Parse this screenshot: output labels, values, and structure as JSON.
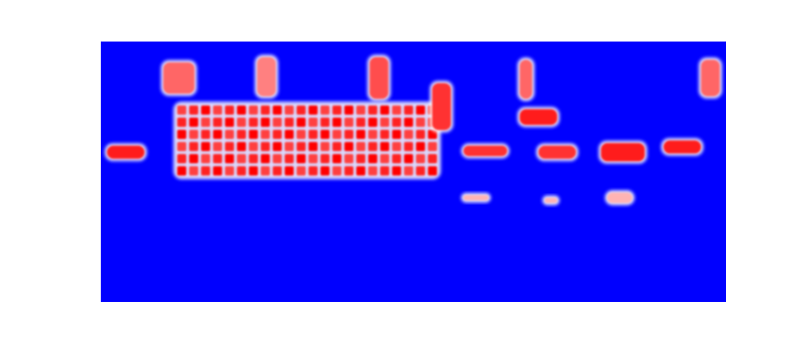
{
  "chart_data": {
    "type": "heatmap",
    "title": "",
    "xlabel": "",
    "ylabel": "",
    "grid": false,
    "legend": "none",
    "colors": {
      "background": "#0000ff",
      "high": "#ff0000",
      "mid": "#ffffff"
    },
    "blobs": [
      {
        "label": "large-block",
        "x": [
          0.12,
          0.54
        ],
        "y": [
          0.24,
          0.52
        ],
        "value": 1.0,
        "rows": 6,
        "cols": 22
      },
      {
        "label": "left-streak",
        "x": [
          0.01,
          0.07
        ],
        "y": [
          0.4,
          0.45
        ],
        "value": 0.9
      },
      {
        "label": "upper-left-cluster",
        "x": [
          0.1,
          0.15
        ],
        "y": [
          0.08,
          0.2
        ],
        "value": 0.6
      },
      {
        "label": "upper-col-1",
        "x": [
          0.25,
          0.28
        ],
        "y": [
          0.06,
          0.21
        ],
        "value": 0.5
      },
      {
        "label": "upper-col-2",
        "x": [
          0.43,
          0.46
        ],
        "y": [
          0.06,
          0.22
        ],
        "value": 0.7
      },
      {
        "label": "vertical-bar",
        "x": [
          0.53,
          0.56
        ],
        "y": [
          0.16,
          0.34
        ],
        "value": 0.8
      },
      {
        "label": "right-col-1",
        "x": [
          0.67,
          0.69
        ],
        "y": [
          0.07,
          0.22
        ],
        "value": 0.6
      },
      {
        "label": "right-col-2",
        "x": [
          0.96,
          0.99
        ],
        "y": [
          0.07,
          0.21
        ],
        "value": 0.6
      },
      {
        "label": "right-blob",
        "x": [
          0.67,
          0.73
        ],
        "y": [
          0.26,
          0.32
        ],
        "value": 0.9
      },
      {
        "label": "right-streak-1",
        "x": [
          0.58,
          0.65
        ],
        "y": [
          0.4,
          0.44
        ],
        "value": 0.8
      },
      {
        "label": "right-streak-2",
        "x": [
          0.7,
          0.76
        ],
        "y": [
          0.4,
          0.45
        ],
        "value": 0.8
      },
      {
        "label": "right-streak-3",
        "x": [
          0.8,
          0.87
        ],
        "y": [
          0.39,
          0.46
        ],
        "value": 0.9
      },
      {
        "label": "right-streak-4",
        "x": [
          0.9,
          0.96
        ],
        "y": [
          0.38,
          0.43
        ],
        "value": 0.9
      },
      {
        "label": "low-dot-1",
        "x": [
          0.58,
          0.62
        ],
        "y": [
          0.59,
          0.61
        ],
        "value": 0.3
      },
      {
        "label": "low-dot-2",
        "x": [
          0.71,
          0.73
        ],
        "y": [
          0.6,
          0.62
        ],
        "value": 0.3
      },
      {
        "label": "low-dot-3",
        "x": [
          0.81,
          0.85
        ],
        "y": [
          0.58,
          0.62
        ],
        "value": 0.3
      }
    ]
  }
}
